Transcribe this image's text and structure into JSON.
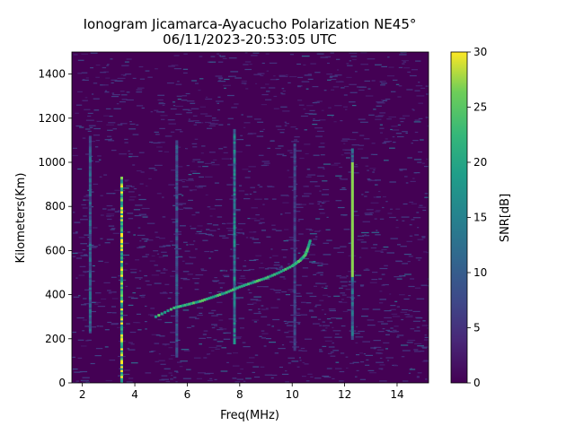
{
  "chart_data": {
    "type": "heatmap",
    "title": "Ionogram Jicamarca-Ayacucho Polarization NE45°",
    "subtitle": "06/11/2023-20:53:05 UTC",
    "xlabel": "Freq(MHz)",
    "ylabel": "Kilometers(Km)",
    "xlim": [
      1.6,
      15.2
    ],
    "ylim": [
      0,
      1500
    ],
    "x_ticks": [
      2,
      4,
      6,
      8,
      10,
      12,
      14
    ],
    "y_ticks": [
      0,
      200,
      400,
      600,
      800,
      1000,
      1200,
      1400
    ],
    "colorbar": {
      "label": "SNR[dB]",
      "min": 0,
      "max": 30,
      "ticks": [
        0,
        5,
        10,
        15,
        20,
        25,
        30
      ],
      "colormap": "viridis"
    },
    "background_color": "#440154",
    "vertical_bands": [
      {
        "freq": 2.3,
        "h_min": 230,
        "h_max": 1120,
        "snr": 12
      },
      {
        "freq": 3.5,
        "h_min": 0,
        "h_max": 940,
        "snr": 28
      },
      {
        "freq": 5.6,
        "h_min": 120,
        "h_max": 1100,
        "snr": 10
      },
      {
        "freq": 7.8,
        "h_min": 180,
        "h_max": 1150,
        "snr": 16
      },
      {
        "freq": 10.1,
        "h_min": 150,
        "h_max": 1090,
        "snr": 8
      },
      {
        "freq": 12.3,
        "h_min": 200,
        "h_max": 1060,
        "snr": 13
      }
    ],
    "trace": {
      "name": "",
      "x": [
        4.8,
        5.5,
        6.0,
        6.5,
        7.0,
        7.5,
        8.0,
        8.5,
        9.0,
        9.5,
        10.0,
        10.3,
        10.5,
        10.6,
        10.7
      ],
      "y": [
        300,
        340,
        355,
        370,
        390,
        410,
        435,
        455,
        475,
        500,
        530,
        555,
        580,
        610,
        650
      ],
      "snr": 24
    },
    "strong_echo": {
      "freq": 12.3,
      "h_min": 480,
      "h_max": 1000,
      "snr": 27
    }
  }
}
